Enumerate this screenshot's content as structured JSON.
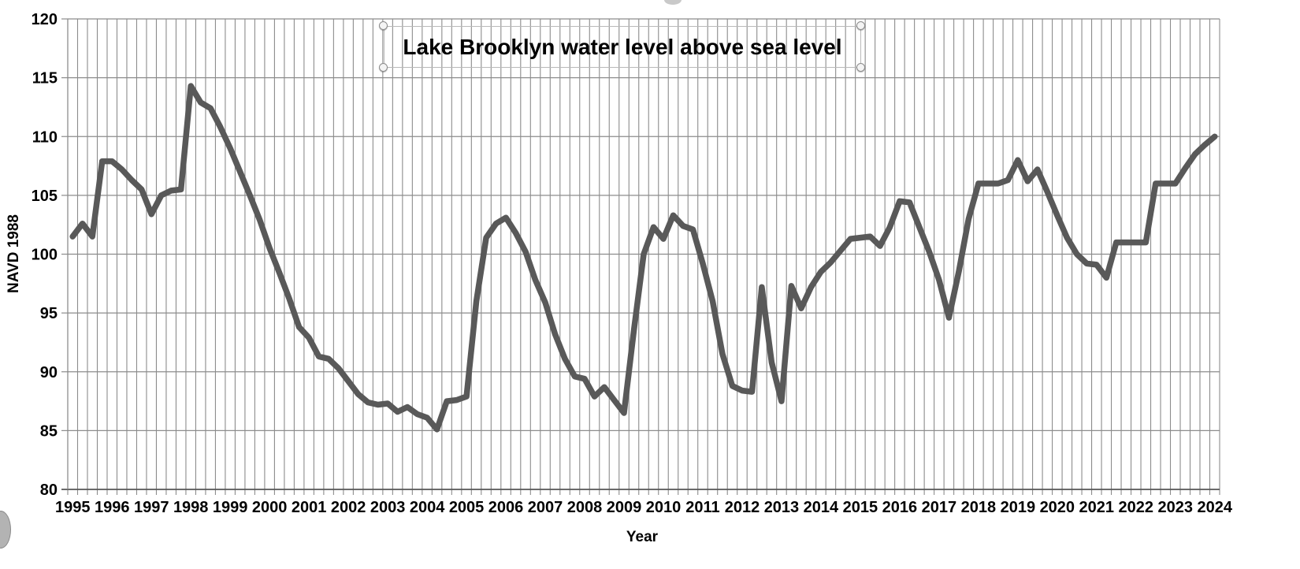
{
  "chart_data": {
    "type": "line",
    "title": "Lake Brooklyn water level above sea level",
    "xlabel": "Year",
    "ylabel": "NAVD 1988",
    "ylim": [
      80,
      120
    ],
    "y_tick_step": 5,
    "y_ticks": [
      "80",
      "85",
      "90",
      "95",
      "100",
      "105",
      "110",
      "115",
      "120"
    ],
    "x_tick_years": [
      "1995",
      "1996",
      "1997",
      "1998",
      "1999",
      "2000",
      "2001",
      "2002",
      "2003",
      "2004",
      "2005",
      "2006",
      "2007",
      "2008",
      "2009",
      "2010",
      "2011",
      "2012",
      "2013",
      "2014",
      "2015",
      "2016",
      "2017",
      "2018",
      "2019",
      "2020",
      "2021",
      "2022",
      "2023",
      "2024"
    ],
    "points_per_year": 4,
    "x_start": 1995.0,
    "x_step": 0.25,
    "grid": {
      "horizontal": "every 5 units",
      "vertical": "every quarter"
    },
    "legend": "none",
    "title_selected": true,
    "series": [
      {
        "values": [
          101.5,
          102.6,
          101.5,
          107.9,
          107.9,
          107.2,
          106.3,
          105.5,
          103.4,
          105.0,
          105.4,
          105.5,
          114.3,
          112.9,
          112.4,
          110.8,
          109.0,
          107.0,
          105.0,
          102.9,
          100.5,
          98.4,
          96.2,
          93.8,
          92.9,
          91.3,
          91.1,
          90.3,
          89.2,
          88.1,
          87.4,
          87.2,
          87.3,
          86.6,
          87.0,
          86.4,
          86.1,
          85.1,
          87.5,
          87.6,
          87.9,
          96.0,
          101.4,
          102.6,
          103.1,
          101.8,
          100.2,
          97.8,
          95.9,
          93.2,
          91.1,
          89.6,
          89.4,
          87.9,
          88.7,
          87.6,
          86.5,
          93.5,
          100.0,
          102.3,
          101.3,
          103.3,
          102.4,
          102.1,
          99.2,
          96.0,
          91.5,
          88.8,
          88.4,
          88.3,
          97.2,
          90.8,
          87.5,
          97.3,
          95.4,
          97.2,
          98.5,
          99.3,
          100.3,
          101.3,
          101.4,
          101.5,
          100.7,
          102.3,
          104.5,
          104.4,
          102.3,
          100.2,
          97.8,
          94.6,
          98.5,
          103.0,
          106.0,
          106.0,
          106.0,
          106.3,
          108.0,
          106.2,
          107.2,
          105.3,
          103.3,
          101.4,
          100.0,
          99.2,
          99.1,
          98.0,
          101.0,
          101.0,
          101.0,
          101.0,
          106.0,
          106.0,
          106.0,
          107.3,
          108.5,
          109.3,
          110.0
        ]
      }
    ],
    "styles": {
      "line_color": "#595959",
      "line_width": 7.5,
      "grid_color": "#8c8c8c",
      "axis_color": "#595959",
      "tick_label_color": "#000000"
    }
  }
}
